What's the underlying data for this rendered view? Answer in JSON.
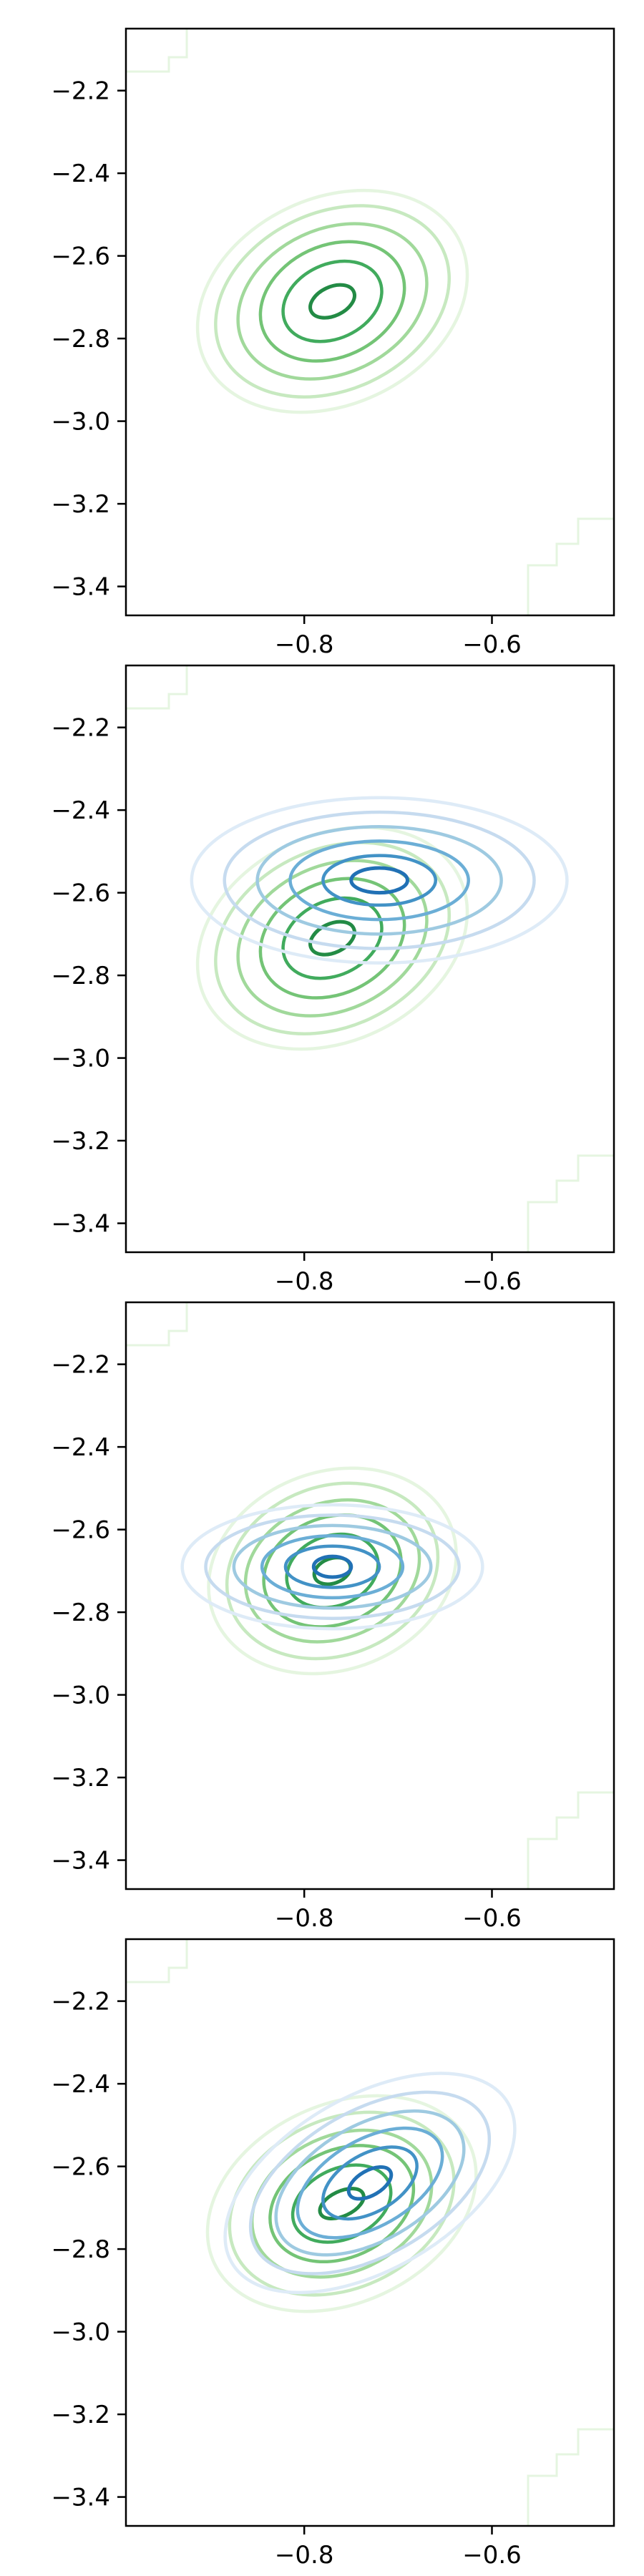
{
  "colors": {
    "greens": [
      "#e5f5e0",
      "#c7e9c0",
      "#a1d99b",
      "#74c476",
      "#41ab5d",
      "#238b45",
      "#006d2c"
    ],
    "blues": [
      "#deebf7",
      "#c6dbef",
      "#9ecae1",
      "#6baed6",
      "#4292c6",
      "#2171b5",
      "#08519c"
    ],
    "axis": "#000000",
    "background": "#ffffff"
  },
  "chart_data": [
    {
      "type": "contour",
      "panel": 1,
      "xlim": [
        -0.99,
        -0.47
      ],
      "ylim": [
        -3.47,
        -2.05
      ],
      "xticks": [
        "−0.8",
        "−0.6"
      ],
      "xtick_values": [
        -0.8,
        -0.6
      ],
      "yticks": [
        "−2.2",
        "−2.4",
        "−2.6",
        "−2.8",
        "−3.0",
        "−3.2",
        "−3.4"
      ],
      "ytick_values": [
        -2.2,
        -2.4,
        -2.6,
        -2.8,
        -3.0,
        -3.2,
        -3.4
      ],
      "series": [
        {
          "palette": "greens",
          "center": [
            -0.77,
            -2.71
          ],
          "radii": [
            [
              0.3,
              0.5
            ],
            [
              0.26,
              0.43
            ],
            [
              0.21,
              0.35
            ],
            [
              0.16,
              0.27
            ],
            [
              0.11,
              0.18
            ],
            [
              0.05,
              0.07
            ]
          ],
          "angle": 25
        }
      ]
    },
    {
      "type": "contour",
      "panel": 2,
      "xlim": [
        -0.99,
        -0.47
      ],
      "ylim": [
        -3.47,
        -2.05
      ],
      "xticks": [
        "−0.8",
        "−0.6"
      ],
      "xtick_values": [
        -0.8,
        -0.6
      ],
      "yticks": [
        "−2.2",
        "−2.4",
        "−2.6",
        "−2.8",
        "−3.0",
        "−3.2",
        "−3.4"
      ],
      "ytick_values": [
        -2.2,
        -2.4,
        -2.6,
        -2.8,
        -3.0,
        -3.2,
        -3.4
      ],
      "series": [
        {
          "palette": "greens",
          "center": [
            -0.77,
            -2.71
          ],
          "radii": [
            [
              0.3,
              0.5
            ],
            [
              0.26,
              0.43
            ],
            [
              0.21,
              0.35
            ],
            [
              0.16,
              0.27
            ],
            [
              0.11,
              0.18
            ],
            [
              0.05,
              0.07
            ]
          ],
          "angle": 25
        },
        {
          "palette": "blues",
          "center": [
            -0.72,
            -2.57
          ],
          "radii": [
            [
              0.4,
              0.4
            ],
            [
              0.33,
              0.33
            ],
            [
              0.26,
              0.26
            ],
            [
              0.19,
              0.19
            ],
            [
              0.12,
              0.12
            ],
            [
              0.06,
              0.06
            ]
          ],
          "angle": 0
        }
      ]
    },
    {
      "type": "contour",
      "panel": 3,
      "xlim": [
        -0.99,
        -0.47
      ],
      "ylim": [
        -3.47,
        -2.05
      ],
      "xticks": [
        "−0.8",
        "−0.6"
      ],
      "xtick_values": [
        -0.8,
        -0.6
      ],
      "yticks": [
        "−2.2",
        "−2.4",
        "−2.6",
        "−2.8",
        "−3.0",
        "−3.2",
        "−3.4"
      ],
      "ytick_values": [
        -2.2,
        -2.4,
        -2.6,
        -2.8,
        -3.0,
        -3.2,
        -3.4
      ],
      "series": [
        {
          "palette": "greens",
          "center": [
            -0.77,
            -2.7
          ],
          "radii": [
            [
              0.27,
              0.48
            ],
            [
              0.23,
              0.41
            ],
            [
              0.19,
              0.33
            ],
            [
              0.15,
              0.26
            ],
            [
              0.1,
              0.17
            ],
            [
              0.04,
              0.06
            ]
          ],
          "angle": 20
        },
        {
          "palette": "blues",
          "center": [
            -0.77,
            -2.69
          ],
          "radii": [
            [
              0.32,
              0.3
            ],
            [
              0.27,
              0.25
            ],
            [
              0.21,
              0.2
            ],
            [
              0.15,
              0.15
            ],
            [
              0.1,
              0.1
            ],
            [
              0.04,
              0.05
            ]
          ],
          "angle": 0
        }
      ]
    },
    {
      "type": "contour",
      "panel": 4,
      "xlim": [
        -0.99,
        -0.47
      ],
      "ylim": [
        -3.47,
        -2.05
      ],
      "xticks": [
        "−0.8",
        "−0.6"
      ],
      "xtick_values": [
        -0.8,
        -0.6
      ],
      "yticks": [
        "−2.2",
        "−2.4",
        "−2.6",
        "−2.8",
        "−3.0",
        "−3.2",
        "−3.4"
      ],
      "ytick_values": [
        -2.2,
        -2.4,
        -2.6,
        -2.8,
        -3.0,
        -3.2,
        -3.4
      ],
      "series": [
        {
          "palette": "greens",
          "center": [
            -0.76,
            -2.69
          ],
          "radii": [
            [
              0.3,
              0.48
            ],
            [
              0.25,
              0.41
            ],
            [
              0.2,
              0.33
            ],
            [
              0.16,
              0.26
            ],
            [
              0.11,
              0.17
            ],
            [
              0.05,
              0.06
            ]
          ],
          "angle": 25
        },
        {
          "palette": "blues",
          "center": [
            -0.73,
            -2.64
          ],
          "radii": [
            [
              0.34,
              0.42
            ],
            [
              0.28,
              0.35
            ],
            [
              0.22,
              0.28
            ],
            [
              0.17,
              0.21
            ],
            [
              0.11,
              0.14
            ],
            [
              0.05,
              0.06
            ]
          ],
          "angle": 30
        }
      ]
    }
  ]
}
